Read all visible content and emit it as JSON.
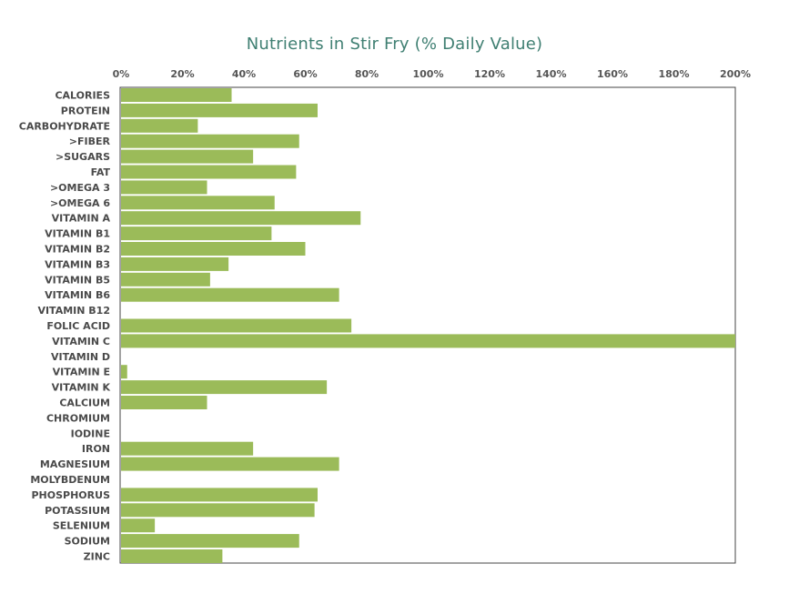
{
  "chart_data": {
    "type": "bar",
    "orientation": "horizontal",
    "title": "Nutrients in Stir Fry (% Daily Value)",
    "xlabel": "",
    "ylabel": "",
    "xlim": [
      0,
      200
    ],
    "x_ticks": [
      0,
      20,
      40,
      60,
      80,
      100,
      120,
      140,
      160,
      180,
      200
    ],
    "x_tick_labels": [
      "0%",
      "20%",
      "40%",
      "60%",
      "80%",
      "100%",
      "120%",
      "140%",
      "160%",
      "180%",
      "200%"
    ],
    "x_axis_position": "top",
    "grid": false,
    "categories": [
      "CALORIES",
      "PROTEIN",
      "CARBOHYDRATE",
      ">FIBER",
      ">SUGARS",
      "FAT",
      ">OMEGA 3",
      ">OMEGA 6",
      "VITAMIN A",
      "VITAMIN B1",
      "VITAMIN B2",
      "VITAMIN B3",
      "VITAMIN B5",
      "VITAMIN B6",
      "VITAMIN B12",
      "FOLIC ACID",
      "VITAMIN C",
      "VITAMIN D",
      "VITAMIN E",
      "VITAMIN K",
      "CALCIUM",
      "CHROMIUM",
      "IODINE",
      "IRON",
      "MAGNESIUM",
      "MOLYBDENUM",
      "PHOSPHORUS",
      "POTASSIUM",
      "SELENIUM",
      "SODIUM",
      "ZINC"
    ],
    "values": [
      36,
      64,
      25,
      58,
      43,
      57,
      28,
      50,
      78,
      49,
      60,
      35,
      29,
      71,
      0,
      75,
      200,
      0,
      2,
      67,
      28,
      0,
      0,
      43,
      71,
      0,
      64,
      63,
      11,
      58,
      33
    ],
    "bar_color": "#9bbb59"
  }
}
